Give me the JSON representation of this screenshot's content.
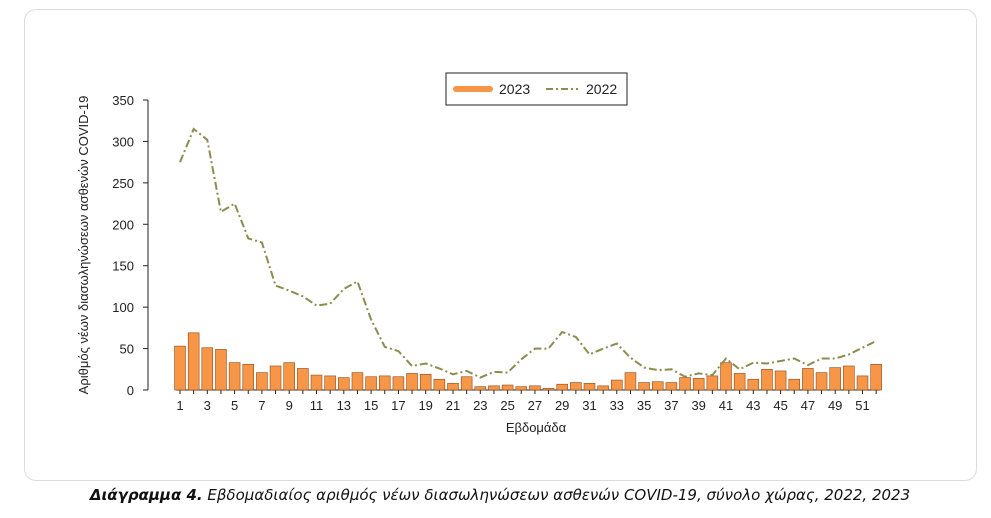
{
  "caption": {
    "bold": "Διάγραμμα 4.",
    "text": " Εβδομαδιαίος αριθμός νέων διασωληνώσεων ασθενών COVID-19, σύνολο χώρας, 2022, 2023"
  },
  "chart_data": {
    "type": "bar",
    "xlabel": "Εβδομάδα",
    "ylabel": "Αριθμός νέων διασωληνώσεων ασθενών COVID-19",
    "ylim": [
      0,
      350
    ],
    "yticks": [
      0,
      50,
      100,
      150,
      200,
      250,
      300,
      350
    ],
    "xtick_labels": [
      1,
      3,
      5,
      7,
      9,
      11,
      13,
      15,
      17,
      19,
      21,
      23,
      25,
      27,
      29,
      31,
      33,
      35,
      37,
      39,
      41,
      43,
      45,
      47,
      49,
      51
    ],
    "legend_position": "top-center",
    "grid": false,
    "colors": {
      "bar": "#F79646",
      "bar_edge": "#8B4A1E",
      "line": "#8C8C50"
    },
    "series": [
      {
        "name": "2023",
        "type": "bar",
        "x": [
          1,
          2,
          3,
          4,
          5,
          6,
          7,
          8,
          9,
          10,
          11,
          12,
          13,
          14,
          15,
          16,
          17,
          18,
          19,
          20,
          21,
          22,
          23,
          24,
          25,
          26,
          27,
          28,
          29,
          30,
          31,
          32,
          33,
          34,
          35,
          36,
          37,
          38,
          39,
          40,
          41,
          42,
          43,
          44,
          45,
          46,
          47,
          48,
          49,
          50,
          51,
          52
        ],
        "values": [
          53,
          69,
          51,
          49,
          33,
          31,
          21,
          29,
          33,
          26,
          18,
          17,
          15,
          21,
          16,
          17,
          16,
          20,
          19,
          13,
          8,
          16,
          4,
          5,
          6,
          4,
          5,
          2,
          7,
          9,
          8,
          5,
          12,
          21,
          9,
          10,
          9,
          15,
          14,
          17,
          33,
          20,
          13,
          25,
          23,
          13,
          26,
          21,
          27,
          29,
          17,
          31
        ]
      },
      {
        "name": "2022",
        "type": "line",
        "x": [
          1,
          2,
          3,
          4,
          5,
          6,
          7,
          8,
          9,
          10,
          11,
          12,
          13,
          14,
          15,
          16,
          17,
          18,
          19,
          20,
          21,
          22,
          23,
          24,
          25,
          26,
          27,
          28,
          29,
          30,
          31,
          32,
          33,
          34,
          35,
          36,
          37,
          38,
          39,
          40,
          41,
          42,
          43,
          44,
          45,
          46,
          47,
          48,
          49,
          50,
          51,
          52
        ],
        "values": [
          275,
          315,
          302,
          215,
          225,
          183,
          178,
          126,
          120,
          113,
          102,
          104,
          122,
          131,
          85,
          52,
          47,
          29,
          32,
          26,
          19,
          23,
          15,
          22,
          21,
          37,
          50,
          50,
          70,
          64,
          43,
          50,
          56,
          39,
          27,
          24,
          25,
          16,
          20,
          18,
          38,
          25,
          33,
          32,
          35,
          38,
          30,
          38,
          38,
          43,
          51,
          59
        ]
      }
    ]
  }
}
